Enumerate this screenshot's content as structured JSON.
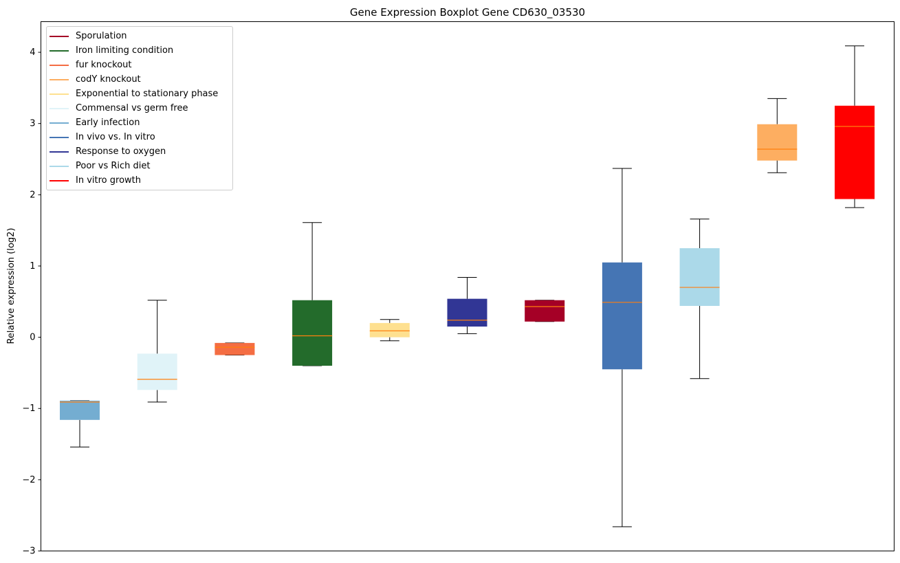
{
  "chart_data": {
    "type": "boxplot",
    "title": "Gene Expression Boxplot Gene CD630_03530",
    "xlabel": "",
    "ylabel": "Relative expression (log2)",
    "ylim": [
      -3,
      4.43
    ],
    "yticks": [
      -3,
      -2,
      -1,
      0,
      1,
      2,
      3,
      4
    ],
    "ytick_labels": [
      "−3",
      "−2",
      "−1",
      "0",
      "1",
      "2",
      "3",
      "4"
    ],
    "legend_position": "top-left",
    "median_color": "#ff7f0e",
    "legend": [
      {
        "label": "Sporulation",
        "color": "#a50026"
      },
      {
        "label": "Iron limiting condition",
        "color": "#236b2b"
      },
      {
        "label": "fur knockout",
        "color": "#f46d43"
      },
      {
        "label": "codY knockout",
        "color": "#fdae61"
      },
      {
        "label": "Exponential to stationary phase",
        "color": "#fee090"
      },
      {
        "label": "Commensal vs germ free",
        "color": "#e0f3f8"
      },
      {
        "label": "Early infection",
        "color": "#74add1"
      },
      {
        "label": "In vivo vs. In vitro",
        "color": "#4575b4"
      },
      {
        "label": "Response to oxygen",
        "color": "#313695"
      },
      {
        "label": "Poor vs Rich diet",
        "color": "#abd9e9"
      },
      {
        "label": "In vitro growth",
        "color": "#ff0000"
      }
    ],
    "boxes": [
      {
        "group": "Early infection",
        "color": "#74add1",
        "whislo": -1.54,
        "q1": -1.16,
        "med": -0.91,
        "q3": -0.89,
        "whishi": -0.89
      },
      {
        "group": "Commensal vs germ free",
        "color": "#e0f3f8",
        "whislo": -0.91,
        "q1": -0.74,
        "med": -0.59,
        "q3": -0.23,
        "whishi": 0.52
      },
      {
        "group": "fur knockout",
        "color": "#f46d43",
        "whislo": -0.25,
        "q1": -0.25,
        "med": -0.14,
        "q3": -0.08,
        "whishi": -0.08
      },
      {
        "group": "Iron limiting condition",
        "color": "#236b2b",
        "whislo": -0.4,
        "q1": -0.4,
        "med": 0.02,
        "q3": 0.52,
        "whishi": 1.61
      },
      {
        "group": "Exponential to stationary phase",
        "color": "#fee090",
        "whislo": -0.05,
        "q1": 0.0,
        "med": 0.09,
        "q3": 0.2,
        "whishi": 0.25
      },
      {
        "group": "Response to oxygen",
        "color": "#313695",
        "whislo": 0.05,
        "q1": 0.15,
        "med": 0.24,
        "q3": 0.54,
        "whishi": 0.84
      },
      {
        "group": "Sporulation",
        "color": "#a50026",
        "whislo": 0.22,
        "q1": 0.22,
        "med": 0.43,
        "q3": 0.52,
        "whishi": 0.52
      },
      {
        "group": "In vivo vs. In vitro",
        "color": "#4575b4",
        "whislo": -2.66,
        "q1": -0.45,
        "med": 0.49,
        "q3": 1.05,
        "whishi": 2.37
      },
      {
        "group": "Poor vs Rich diet",
        "color": "#abd9e9",
        "whislo": -0.58,
        "q1": 0.44,
        "med": 0.7,
        "q3": 1.25,
        "whishi": 1.66
      },
      {
        "group": "codY knockout",
        "color": "#fdae61",
        "whislo": 2.31,
        "q1": 2.48,
        "med": 2.64,
        "q3": 2.99,
        "whishi": 3.35
      },
      {
        "group": "In vitro growth",
        "color": "#ff0000",
        "whislo": 1.82,
        "q1": 1.94,
        "med": 2.96,
        "q3": 3.25,
        "whishi": 4.09
      }
    ]
  }
}
